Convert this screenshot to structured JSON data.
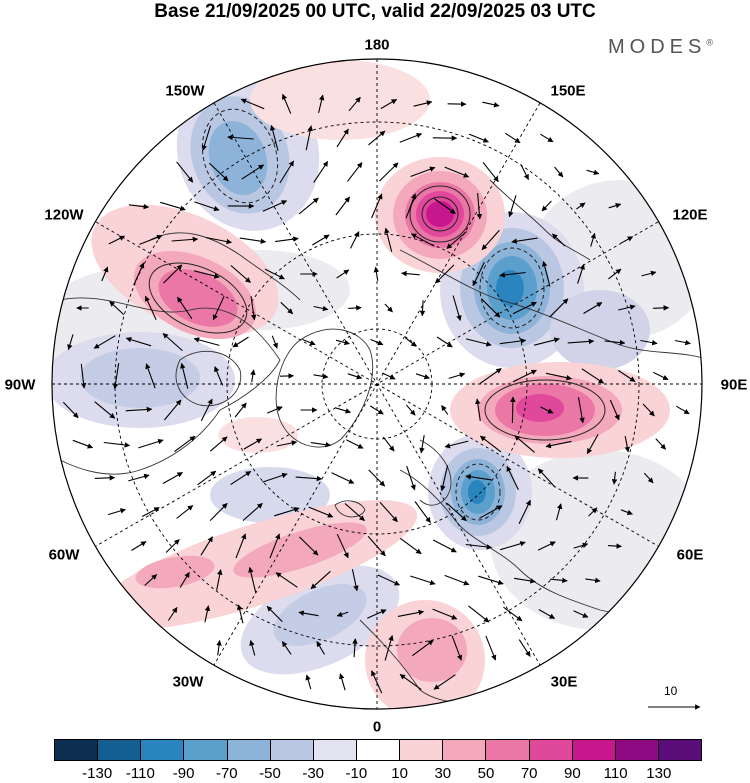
{
  "title": "Base 21/09/2025 00 UTC, valid 22/09/2025 03 UTC",
  "brand": {
    "name": "MODES",
    "mark": "®"
  },
  "map": {
    "projection": "north polar stereographic",
    "longitude_labels": [
      "180",
      "150E",
      "120E",
      "90E",
      "60E",
      "30E",
      "0",
      "30W",
      "60W",
      "90W",
      "120W",
      "150W"
    ],
    "reference_vector_label": "10"
  },
  "colorbar": {
    "tick_labels": [
      "-130",
      "-110",
      "-90",
      "-70",
      "-50",
      "-30",
      "-10",
      "10",
      "30",
      "50",
      "70",
      "90",
      "110",
      "130"
    ],
    "colors": [
      "#0d2f52",
      "#135f91",
      "#2a85bf",
      "#5b9fcd",
      "#8eb3d9",
      "#b9c7e3",
      "#e3e2f0",
      "#ffffff",
      "#f9d3d6",
      "#f3a9bb",
      "#eb77a6",
      "#e0499b",
      "#c7178d",
      "#8d0a82",
      "#5b0d79"
    ]
  },
  "anomalies": [
    {
      "name": "east-siberia-high",
      "value": 110
    },
    {
      "name": "pacific-low-east",
      "value": -90
    },
    {
      "name": "siberia-high",
      "value": 90
    },
    {
      "name": "europe-low",
      "value": -90
    },
    {
      "name": "canada-high",
      "value": 70
    },
    {
      "name": "alaska-low",
      "value": -70
    },
    {
      "name": "hudson-low",
      "value": -50
    },
    {
      "name": "atlantic-high",
      "value": 50
    },
    {
      "name": "africa-high",
      "value": 50
    },
    {
      "name": "atlantic-high-south",
      "value": 30
    }
  ]
}
